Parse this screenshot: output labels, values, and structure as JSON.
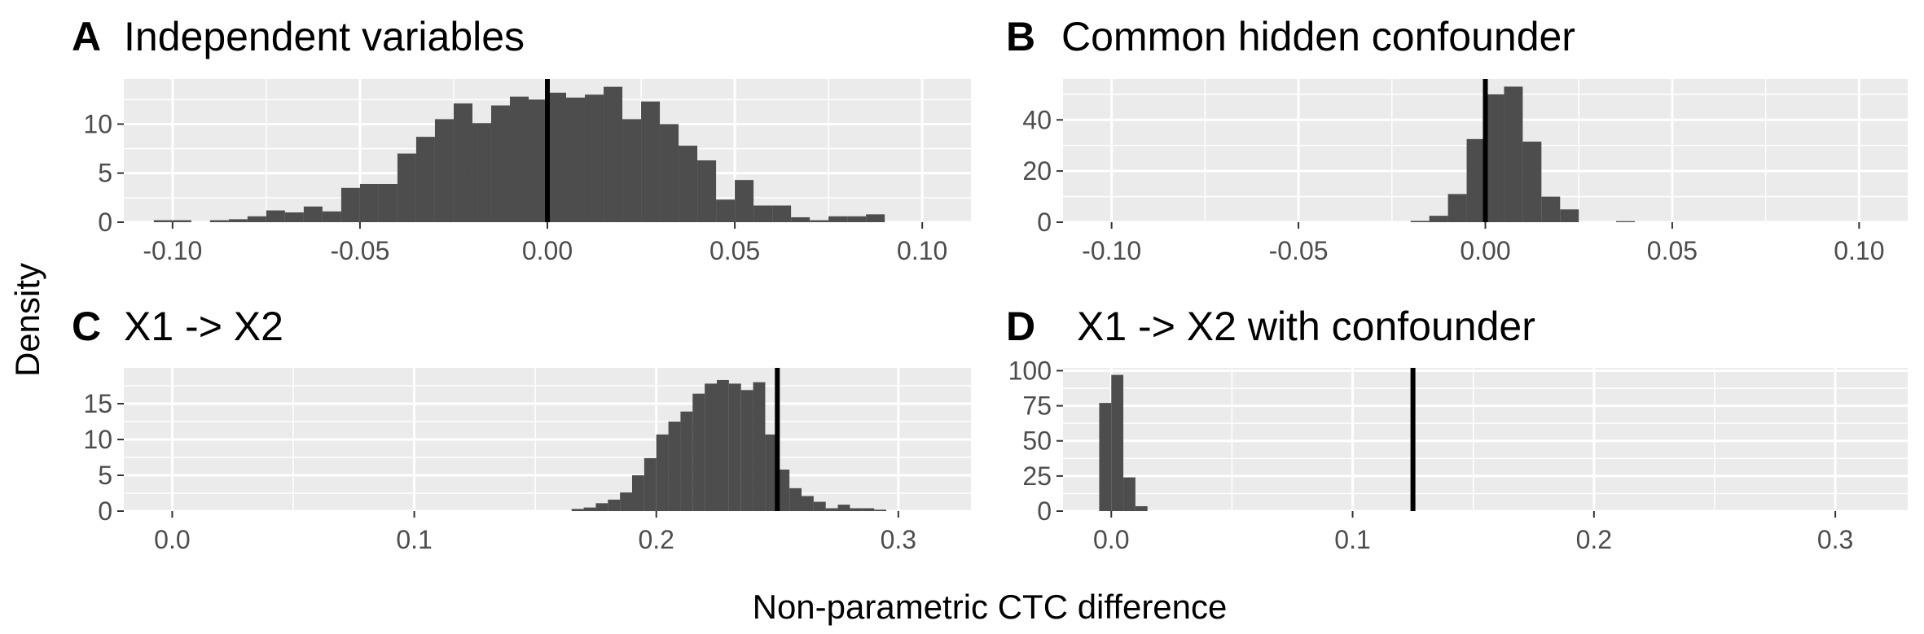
{
  "figure": {
    "ylabel": "Density",
    "xlabel": "Non-parametric CTC difference"
  },
  "chart_data": [
    {
      "type": "bar",
      "letter": "A",
      "title": "Independent variables",
      "xlim": [
        -0.113,
        0.113
      ],
      "ylim": [
        0,
        14.6
      ],
      "xticks": [
        -0.1,
        -0.05,
        0.0,
        0.05,
        0.1
      ],
      "xtick_labels": [
        "-0.10",
        "-0.05",
        "0.00",
        "0.05",
        "0.10"
      ],
      "yticks": [
        0,
        5,
        10
      ],
      "ytick_labels": [
        "0",
        "5",
        "10"
      ],
      "bin_start": -0.105,
      "bin_width": 0.005,
      "values": [
        0.2,
        0.2,
        0,
        0.2,
        0.3,
        0.6,
        1.2,
        1.0,
        1.6,
        1.1,
        3.5,
        3.9,
        3.9,
        7.0,
        8.7,
        10.5,
        12.1,
        10.1,
        11.9,
        12.8,
        12.5,
        13.2,
        12.7,
        13.0,
        13.8,
        10.5,
        12.3,
        10.0,
        7.8,
        6.3,
        2.3,
        4.3,
        1.7,
        1.7,
        0.5,
        0.2,
        0.6,
        0.6,
        0.8
      ],
      "vline": 0.0
    },
    {
      "type": "bar",
      "letter": "B",
      "title": "Common hidden confounder",
      "xlim": [
        -0.113,
        0.113
      ],
      "ylim": [
        0,
        56
      ],
      "xticks": [
        -0.1,
        -0.05,
        0.0,
        0.05,
        0.1
      ],
      "xtick_labels": [
        "-0.10",
        "-0.05",
        "0.00",
        "0.05",
        "0.10"
      ],
      "yticks": [
        0,
        20,
        40
      ],
      "ytick_labels": [
        "0",
        "20",
        "40"
      ],
      "bin_start": -0.025,
      "bin_width": 0.005,
      "values": [
        0,
        0.5,
        2.5,
        11,
        32.5,
        50,
        53,
        31.5,
        10,
        5,
        0,
        0,
        0.4
      ],
      "vline": 0.0
    },
    {
      "type": "bar",
      "letter": "C",
      "title": "X1 -> X2",
      "xlim": [
        -0.02,
        0.33
      ],
      "ylim": [
        0,
        20
      ],
      "xticks": [
        0.0,
        0.1,
        0.2,
        0.3
      ],
      "xtick_labels": [
        "0.0",
        "0.1",
        "0.2",
        "0.3"
      ],
      "yticks": [
        0,
        5,
        10,
        15
      ],
      "ytick_labels": [
        "0",
        "5",
        "10",
        "15"
      ],
      "bin_start": 0.165,
      "bin_width": 0.005,
      "values": [
        0.3,
        0.5,
        1.1,
        1.6,
        2.6,
        5.0,
        7.4,
        10.7,
        12.5,
        13.9,
        16.4,
        17.8,
        18.3,
        17.8,
        16.9,
        18.0,
        10.7,
        5.8,
        3.2,
        2.1,
        1.3,
        0.4,
        0.9,
        0.4,
        0.4,
        0.2
      ],
      "vline": 0.25
    },
    {
      "type": "bar",
      "letter": "D",
      "title": "X1 -> X2 with confounder",
      "xlim": [
        -0.02,
        0.33
      ],
      "ylim": [
        0,
        102
      ],
      "xticks": [
        0.0,
        0.1,
        0.2,
        0.3
      ],
      "xtick_labels": [
        "0.0",
        "0.1",
        "0.2",
        "0.3"
      ],
      "yticks": [
        0,
        25,
        50,
        75,
        100
      ],
      "ytick_labels": [
        "0",
        "25",
        "50",
        "75",
        "100"
      ],
      "bin_start": -0.005,
      "bin_width": 0.005,
      "values": [
        77,
        97,
        24,
        3.5
      ],
      "vline": 0.125
    }
  ]
}
